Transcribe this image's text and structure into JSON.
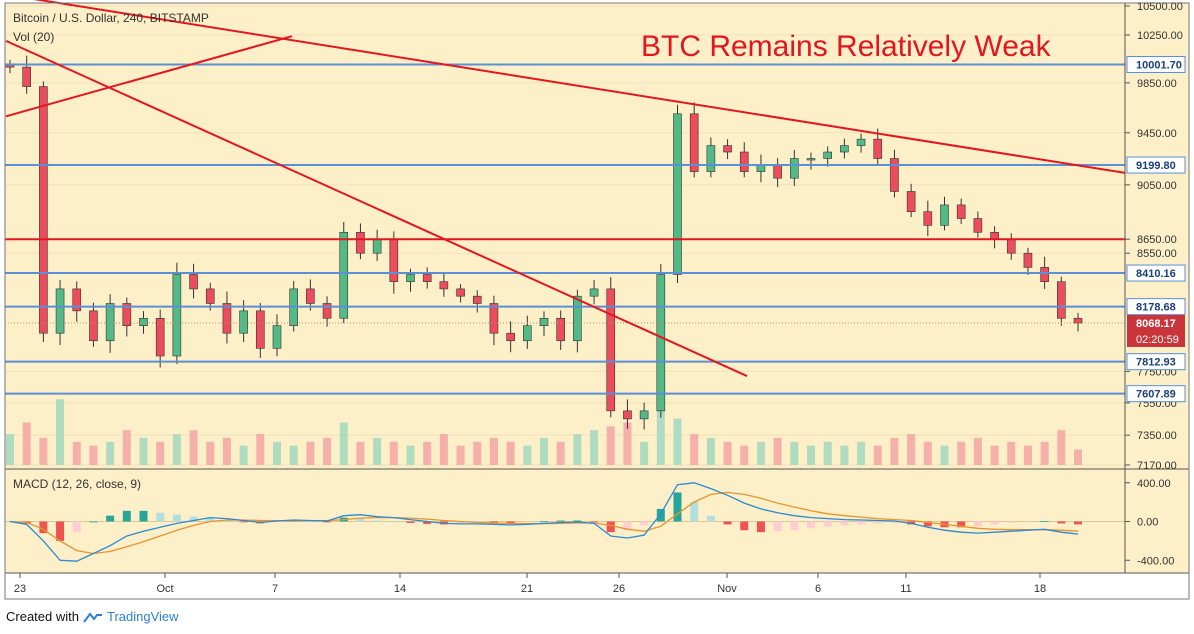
{
  "header": {
    "symbol": "Bitcoin / U.S. Dollar, 240, BITSTAMP",
    "volume_label": "Vol (20)",
    "macd_label": "MACD (12, 26, close, 9)"
  },
  "headline": "BTC Remains Relatively Weak",
  "footer": {
    "created_with": "Created with",
    "brand": "TradingView"
  },
  "colors": {
    "background": "#fdefc8",
    "up_candle": "#53b987",
    "down_candle": "#eb4d5c",
    "trendline": "#e3161f",
    "hline": "#5b8fd8",
    "headline": "#e3161f",
    "macd_line": "#2a8ad6",
    "signal_line": "#e8942e",
    "price_tag": "#c9353a"
  },
  "chart_data": [
    {
      "type": "candlestick",
      "title": "Bitcoin / U.S. Dollar, 240, BITSTAMP",
      "interval": "240",
      "exchange": "BITSTAMP",
      "y_scale": "log",
      "ylim": [
        7170,
        10500
      ],
      "price_ticks": [
        "10500.00",
        "10250.00",
        "9850.00",
        "9450.00",
        "9050.00",
        "8650.00",
        "8550.00",
        "7750.00",
        "7550.00",
        "7350.00",
        "7170.00"
      ],
      "x_ticks": [
        "23",
        "Oct",
        "7",
        "14",
        "21",
        "26",
        "Nov",
        "6",
        "11",
        "18"
      ],
      "horizontal_levels": [
        {
          "price": 10001.7,
          "label": "10001.70"
        },
        {
          "price": 9199.8,
          "label": "9199.80"
        },
        {
          "price": 8410.16,
          "label": "8410.16"
        },
        {
          "price": 8178.68,
          "label": "8178.68"
        },
        {
          "price": 7812.93,
          "label": "7812.93"
        },
        {
          "price": 7607.89,
          "label": "7607.89"
        }
      ],
      "resistance_level": 8650,
      "last_price": {
        "value": 8068.17,
        "label": "8068.17",
        "countdown": "02:20:59"
      },
      "trendlines": [
        {
          "name": "descending-resistance",
          "from": {
            "date": "Sep 20",
            "price": 10600
          },
          "to": {
            "date": "Nov 20",
            "price": 9140
          }
        },
        {
          "name": "descending-steep",
          "from": {
            "date": "Sep 20",
            "price": 10200
          },
          "to": {
            "date": "Oct 29",
            "price": 7720
          }
        },
        {
          "name": "ascending-short",
          "from": {
            "date": "Sep 20",
            "price": 9580
          },
          "to": {
            "date": "Oct 8",
            "price": 10240
          }
        }
      ],
      "closes": [
        9980,
        9820,
        8000,
        8300,
        8150,
        7950,
        8200,
        8050,
        8100,
        7850,
        8400,
        8300,
        8200,
        8000,
        8150,
        7900,
        8050,
        8300,
        8200,
        8100,
        8700,
        8550,
        8650,
        8350,
        8400,
        8350,
        8300,
        8250,
        8200,
        8000,
        7950,
        8050,
        8100,
        7950,
        8250,
        8300,
        7500,
        7450,
        7500,
        8400,
        9600,
        9150,
        9350,
        9300,
        9150,
        9200,
        9100,
        9250,
        9250,
        9300,
        9350,
        9400,
        9250,
        9000,
        8850,
        8750,
        8900,
        8800,
        8700,
        8650,
        8550,
        8450,
        8350,
        8100,
        8068.17
      ]
    },
    {
      "type": "bar",
      "title": "Vol (20)",
      "series": [
        {
          "values": [
            40,
            55,
            35,
            85,
            30,
            25,
            30,
            45,
            35,
            30,
            40,
            45,
            30,
            35,
            25,
            40,
            30,
            25,
            30,
            35,
            55,
            30,
            35,
            30,
            25,
            30,
            40,
            25,
            30,
            35,
            30,
            25,
            35,
            30,
            40,
            45,
            50,
            55,
            30,
            110,
            60,
            40,
            35,
            30,
            25,
            30,
            35,
            30,
            25,
            30,
            25,
            30,
            25,
            35,
            40,
            30,
            25,
            30,
            35,
            25,
            30,
            25,
            30,
            45,
            20
          ]
        }
      ]
    },
    {
      "type": "line",
      "title": "MACD (12, 26, close, 9)",
      "ylim": [
        -480,
        480
      ],
      "y_ticks": [
        "400.00",
        "0.00",
        "-400.00"
      ],
      "series": [
        {
          "name": "MACD",
          "values": [
            0,
            -30,
            -200,
            -400,
            -410,
            -330,
            -250,
            -150,
            -100,
            -60,
            -20,
            10,
            40,
            30,
            10,
            -10,
            5,
            15,
            10,
            5,
            60,
            70,
            50,
            40,
            20,
            0,
            -20,
            -25,
            -25,
            -30,
            -35,
            -30,
            -20,
            -10,
            -5,
            -20,
            -150,
            -170,
            -140,
            80,
            380,
            400,
            340,
            270,
            190,
            130,
            90,
            60,
            40,
            30,
            20,
            15,
            10,
            5,
            -20,
            -60,
            -90,
            -110,
            -120,
            -110,
            -100,
            -90,
            -80,
            -110,
            -130
          ]
        },
        {
          "name": "Signal",
          "values": [
            0,
            -10,
            -80,
            -200,
            -300,
            -330,
            -310,
            -260,
            -210,
            -150,
            -90,
            -40,
            0,
            15,
            15,
            10,
            8,
            8,
            8,
            8,
            20,
            35,
            40,
            40,
            35,
            25,
            10,
            0,
            -10,
            -15,
            -20,
            -22,
            -22,
            -20,
            -15,
            -15,
            -40,
            -80,
            -100,
            -50,
            80,
            200,
            280,
            300,
            280,
            240,
            190,
            150,
            110,
            80,
            60,
            45,
            30,
            20,
            10,
            -10,
            -30,
            -50,
            -70,
            -80,
            -85,
            -85,
            -85,
            -90,
            -100
          ]
        }
      ]
    }
  ]
}
